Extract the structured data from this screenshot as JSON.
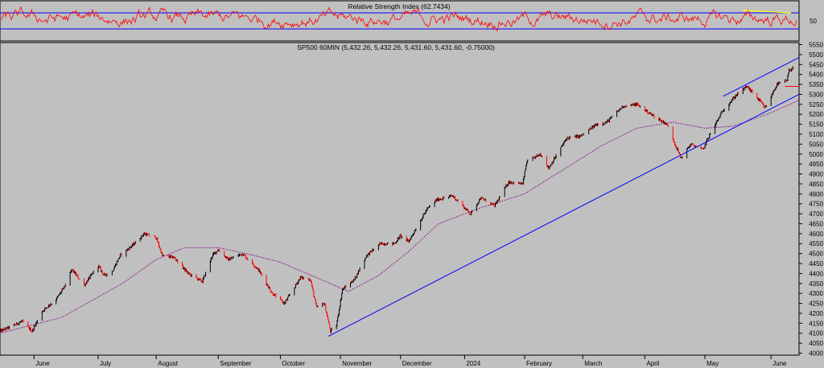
{
  "chart_data": [
    {
      "type": "line",
      "panel": "indicator",
      "title": "Relative Strength Index (62.7434)",
      "y_ticks": [
        50
      ],
      "ylim": [
        0,
        100
      ],
      "reference_lines": [
        70,
        30
      ],
      "trendline": {
        "from": [
          "2024-05-20",
          76
        ],
        "to": [
          "2024-06-13",
          70
        ],
        "color": "#ffff00"
      },
      "series": [
        {
          "color": "#ff0000"
        }
      ]
    },
    {
      "type": "candlestick",
      "panel": "price",
      "title": "SP500 60MIN (5,432.26, 5,432.26, 5,431.60, 5,431.60, -0.75000)",
      "ylim": [
        3990,
        5560
      ],
      "y_ticks": [
        4000,
        4050,
        4100,
        4150,
        4200,
        4250,
        4300,
        4350,
        4400,
        4450,
        4500,
        4550,
        4600,
        4650,
        4700,
        4750,
        4800,
        4850,
        4900,
        4950,
        5000,
        5050,
        5100,
        5150,
        5200,
        5250,
        5300,
        5350,
        5400,
        5450,
        5500,
        5550
      ],
      "x_ticks": [
        "June",
        "July",
        "August",
        "September",
        "October",
        "November",
        "December",
        "2024",
        "February",
        "March",
        "April",
        "May",
        "June"
      ],
      "x_tick_dates": [
        "2023-06-01",
        "2023-07-03",
        "2023-08-01",
        "2023-09-01",
        "2023-10-02",
        "2023-11-01",
        "2023-12-01",
        "2024-01-02",
        "2024-02-01",
        "2024-03-01",
        "2024-04-01",
        "2024-05-01",
        "2024-06-03"
      ],
      "x_range": [
        "2023-05-15",
        "2024-06-17"
      ],
      "up_color": "#000000",
      "down_color": "#ff0000",
      "price_path": [
        [
          "2023-05-15",
          4110
        ],
        [
          "2023-05-22",
          4140
        ],
        [
          "2023-05-26",
          4160
        ],
        [
          "2023-05-31",
          4110
        ],
        [
          "2023-06-05",
          4210
        ],
        [
          "2023-06-12",
          4270
        ],
        [
          "2023-06-16",
          4330
        ],
        [
          "2023-06-20",
          4420
        ],
        [
          "2023-06-26",
          4340
        ],
        [
          "2023-07-03",
          4440
        ],
        [
          "2023-07-06",
          4390
        ],
        [
          "2023-07-10",
          4410
        ],
        [
          "2023-07-14",
          4490
        ],
        [
          "2023-07-20",
          4540
        ],
        [
          "2023-07-26",
          4600
        ],
        [
          "2023-08-01",
          4580
        ],
        [
          "2023-08-04",
          4490
        ],
        [
          "2023-08-10",
          4480
        ],
        [
          "2023-08-17",
          4400
        ],
        [
          "2023-08-24",
          4360
        ],
        [
          "2023-08-29",
          4490
        ],
        [
          "2023-09-01",
          4520
        ],
        [
          "2023-09-06",
          4470
        ],
        [
          "2023-09-13",
          4500
        ],
        [
          "2023-09-21",
          4420
        ],
        [
          "2023-09-28",
          4300
        ],
        [
          "2023-10-04",
          4250
        ],
        [
          "2023-10-09",
          4330
        ],
        [
          "2023-10-12",
          4380
        ],
        [
          "2023-10-17",
          4370
        ],
        [
          "2023-10-20",
          4230
        ],
        [
          "2023-10-24",
          4250
        ],
        [
          "2023-10-27",
          4110
        ],
        [
          "2023-10-30",
          4140
        ],
        [
          "2023-11-02",
          4320
        ],
        [
          "2023-11-08",
          4370
        ],
        [
          "2023-11-14",
          4490
        ],
        [
          "2023-11-21",
          4550
        ],
        [
          "2023-11-28",
          4550
        ],
        [
          "2023-12-01",
          4590
        ],
        [
          "2023-12-05",
          4560
        ],
        [
          "2023-12-14",
          4720
        ],
        [
          "2023-12-19",
          4770
        ],
        [
          "2023-12-27",
          4790
        ],
        [
          "2024-01-02",
          4730
        ],
        [
          "2024-01-05",
          4700
        ],
        [
          "2024-01-10",
          4780
        ],
        [
          "2024-01-17",
          4740
        ],
        [
          "2024-01-24",
          4860
        ],
        [
          "2024-01-31",
          4850
        ],
        [
          "2024-02-02",
          4960
        ],
        [
          "2024-02-09",
          5000
        ],
        [
          "2024-02-13",
          4930
        ],
        [
          "2024-02-22",
          5080
        ],
        [
          "2024-02-29",
          5090
        ],
        [
          "2024-03-08",
          5150
        ],
        [
          "2024-03-13",
          5160
        ],
        [
          "2024-03-21",
          5240
        ],
        [
          "2024-03-28",
          5250
        ],
        [
          "2024-04-04",
          5200
        ],
        [
          "2024-04-12",
          5150
        ],
        [
          "2024-04-19",
          4980
        ],
        [
          "2024-04-24",
          5050
        ],
        [
          "2024-04-30",
          5020
        ],
        [
          "2024-05-02",
          5070
        ],
        [
          "2024-05-10",
          5220
        ],
        [
          "2024-05-17",
          5300
        ],
        [
          "2024-05-22",
          5340
        ],
        [
          "2024-05-29",
          5260
        ],
        [
          "2024-05-31",
          5230
        ],
        [
          "2024-06-06",
          5350
        ],
        [
          "2024-06-11",
          5370
        ],
        [
          "2024-06-12",
          5420
        ],
        [
          "2024-06-14",
          5432
        ]
      ],
      "moving_average": {
        "style": "dotted",
        "color": "#800080",
        "path": [
          [
            "2023-05-15",
            4100
          ],
          [
            "2023-06-15",
            4180
          ],
          [
            "2023-07-15",
            4350
          ],
          [
            "2023-08-01",
            4470
          ],
          [
            "2023-08-15",
            4530
          ],
          [
            "2023-09-01",
            4530
          ],
          [
            "2023-09-15",
            4500
          ],
          [
            "2023-10-01",
            4460
          ],
          [
            "2023-10-20",
            4380
          ],
          [
            "2023-11-05",
            4310
          ],
          [
            "2023-11-20",
            4390
          ],
          [
            "2023-12-05",
            4510
          ],
          [
            "2023-12-20",
            4650
          ],
          [
            "2024-01-10",
            4730
          ],
          [
            "2024-02-01",
            4800
          ],
          [
            "2024-02-20",
            4920
          ],
          [
            "2024-03-10",
            5040
          ],
          [
            "2024-03-28",
            5130
          ],
          [
            "2024-04-15",
            5160
          ],
          [
            "2024-05-01",
            5130
          ],
          [
            "2024-05-15",
            5140
          ],
          [
            "2024-06-01",
            5200
          ],
          [
            "2024-06-17",
            5270
          ]
        ]
      },
      "trendlines": [
        {
          "color": "#0000ff",
          "from": [
            "2023-10-26",
            4085
          ],
          "to": [
            "2024-06-17",
            5300
          ]
        },
        {
          "color": "#0000ff",
          "from": [
            "2024-05-10",
            5290
          ],
          "to": [
            "2024-06-17",
            5485
          ]
        },
        {
          "color": "#ff0000",
          "from": [
            "2024-06-10",
            5340
          ],
          "to": [
            "2024-06-17",
            5340
          ]
        }
      ]
    }
  ]
}
